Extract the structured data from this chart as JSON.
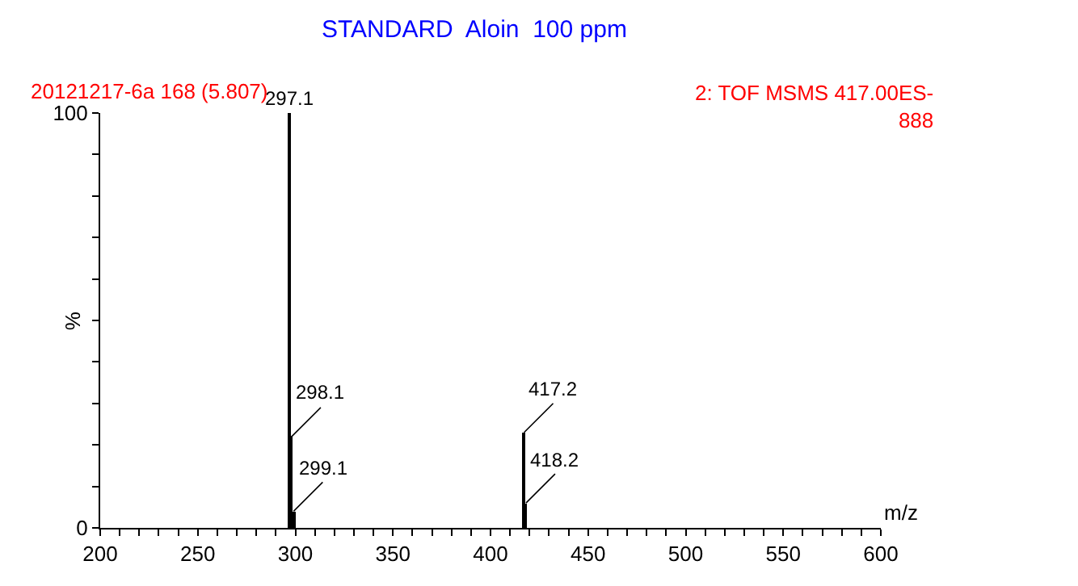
{
  "chart_data": {
    "type": "bar",
    "title": "STANDARD  Aloin  100 ppm",
    "annotations": [
      "20121217-6a 168 (5.807)",
      "2: TOF MSMS 417.00ES-\n888",
      {
        "text": "297.1",
        "x": 297.1,
        "y": 100
      },
      {
        "text": "298.1",
        "x": 298.1,
        "y": 22
      },
      {
        "text": "299.1",
        "x": 299.1,
        "y": 4
      },
      {
        "text": "417.2",
        "x": 417.2,
        "y": 23
      },
      {
        "text": "418.2",
        "x": 418.2,
        "y": 6
      }
    ],
    "xlabel": "m/z",
    "ylabel": "%",
    "x": [
      297.1,
      298.1,
      299.1,
      417.2,
      418.2
    ],
    "values": [
      100,
      22,
      4,
      23,
      6
    ],
    "color": "#000000",
    "xlim": [
      200,
      600
    ],
    "xticks": [
      200,
      {
        "value": 210,
        "label": null
      },
      {
        "value": 220,
        "label": null
      },
      {
        "value": 230,
        "label": null
      },
      {
        "value": 240,
        "label": null
      },
      250,
      {
        "value": 260,
        "label": null
      },
      {
        "value": 270,
        "label": null
      },
      {
        "value": 280,
        "label": null
      },
      {
        "value": 290,
        "label": null
      },
      300,
      {
        "value": 310,
        "label": null
      },
      {
        "value": 320,
        "label": null
      },
      {
        "value": 330,
        "label": null
      },
      {
        "value": 340,
        "label": null
      },
      350,
      {
        "value": 360,
        "label": null
      },
      {
        "value": 370,
        "label": null
      },
      {
        "value": 380,
        "label": null
      },
      {
        "value": 390,
        "label": null
      },
      400,
      {
        "value": 410,
        "label": null
      },
      {
        "value": 420,
        "label": null
      },
      {
        "value": 430,
        "label": null
      },
      {
        "value": 440,
        "label": null
      },
      450,
      {
        "value": 460,
        "label": null
      },
      {
        "value": 470,
        "label": null
      },
      {
        "value": 480,
        "label": null
      },
      {
        "value": 490,
        "label": null
      },
      500,
      {
        "value": 510,
        "label": null
      },
      {
        "value": 520,
        "label": null
      },
      {
        "value": 530,
        "label": null
      },
      {
        "value": 540,
        "label": null
      },
      550,
      {
        "value": 560,
        "label": null
      },
      {
        "value": 570,
        "label": null
      },
      {
        "value": 580,
        "label": null
      },
      {
        "value": 590,
        "label": null
      },
      600
    ],
    "ylim": [
      0,
      100
    ],
    "yticks": [
      0,
      {
        "value": 10,
        "label": null
      },
      {
        "value": 20,
        "label": null
      },
      {
        "value": 30,
        "label": null
      },
      {
        "value": 40,
        "label": null
      },
      {
        "value": 50,
        "label": null
      },
      {
        "value": 60,
        "label": null
      },
      {
        "value": 70,
        "label": null
      },
      {
        "value": 80,
        "label": null
      },
      {
        "value": 90,
        "label": null
      },
      100
    ],
    "legend": false
  }
}
